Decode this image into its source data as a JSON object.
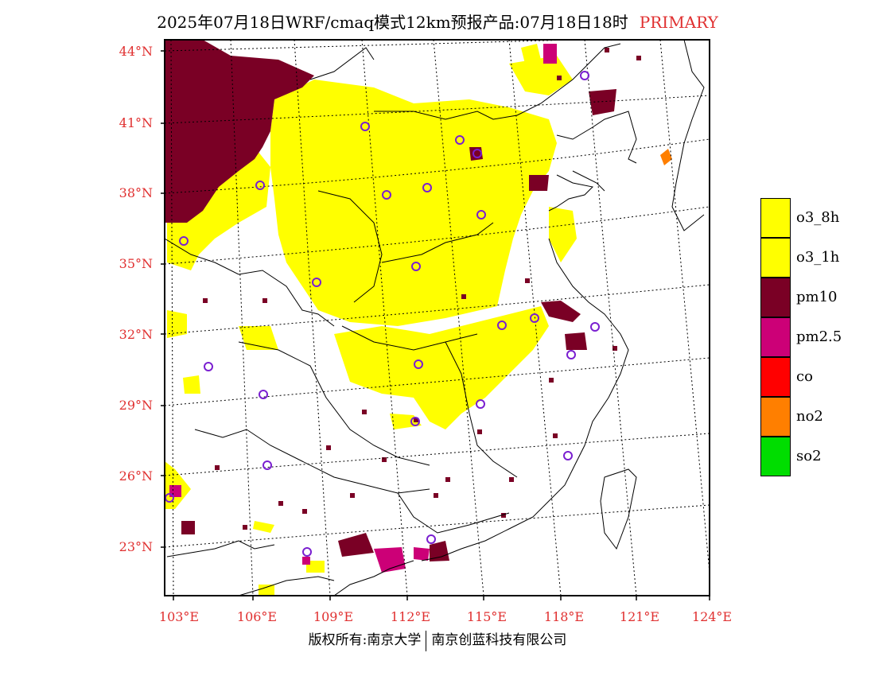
{
  "title": {
    "main": "2025年07月18日WRF/cmaq模式12km预报产品:07月18日18时",
    "tag": "PRIMARY"
  },
  "axes": {
    "lat_labels": [
      "44°N",
      "41°N",
      "38°N",
      "35°N",
      "32°N",
      "29°N",
      "26°N",
      "23°N"
    ],
    "lon_labels": [
      "103°E",
      "106°E",
      "109°E",
      "112°E",
      "115°E",
      "118°E",
      "121°E",
      "124°E"
    ]
  },
  "legend": [
    {
      "label": "o3_8h",
      "color": "#ffff00"
    },
    {
      "label": "o3_1h",
      "color": "#ffff00"
    },
    {
      "label": "pm10",
      "color": "#7a0025"
    },
    {
      "label": "pm2.5",
      "color": "#cc0077"
    },
    {
      "label": "co",
      "color": "#ff0000"
    },
    {
      "label": "no2",
      "color": "#ff7f00"
    },
    {
      "label": "so2",
      "color": "#00dd00"
    }
  ],
  "map": {
    "region": "China (east-central)",
    "grid": true,
    "colors": {
      "o3": "#ffff00",
      "pm10": "#7a0025",
      "pm25": "#cc0077",
      "no2": "#ff7f00",
      "sites": "#7a1fd0"
    }
  },
  "footer": {
    "left": "版权所有:南京大学",
    "right": "南京创蓝科技有限公司"
  }
}
